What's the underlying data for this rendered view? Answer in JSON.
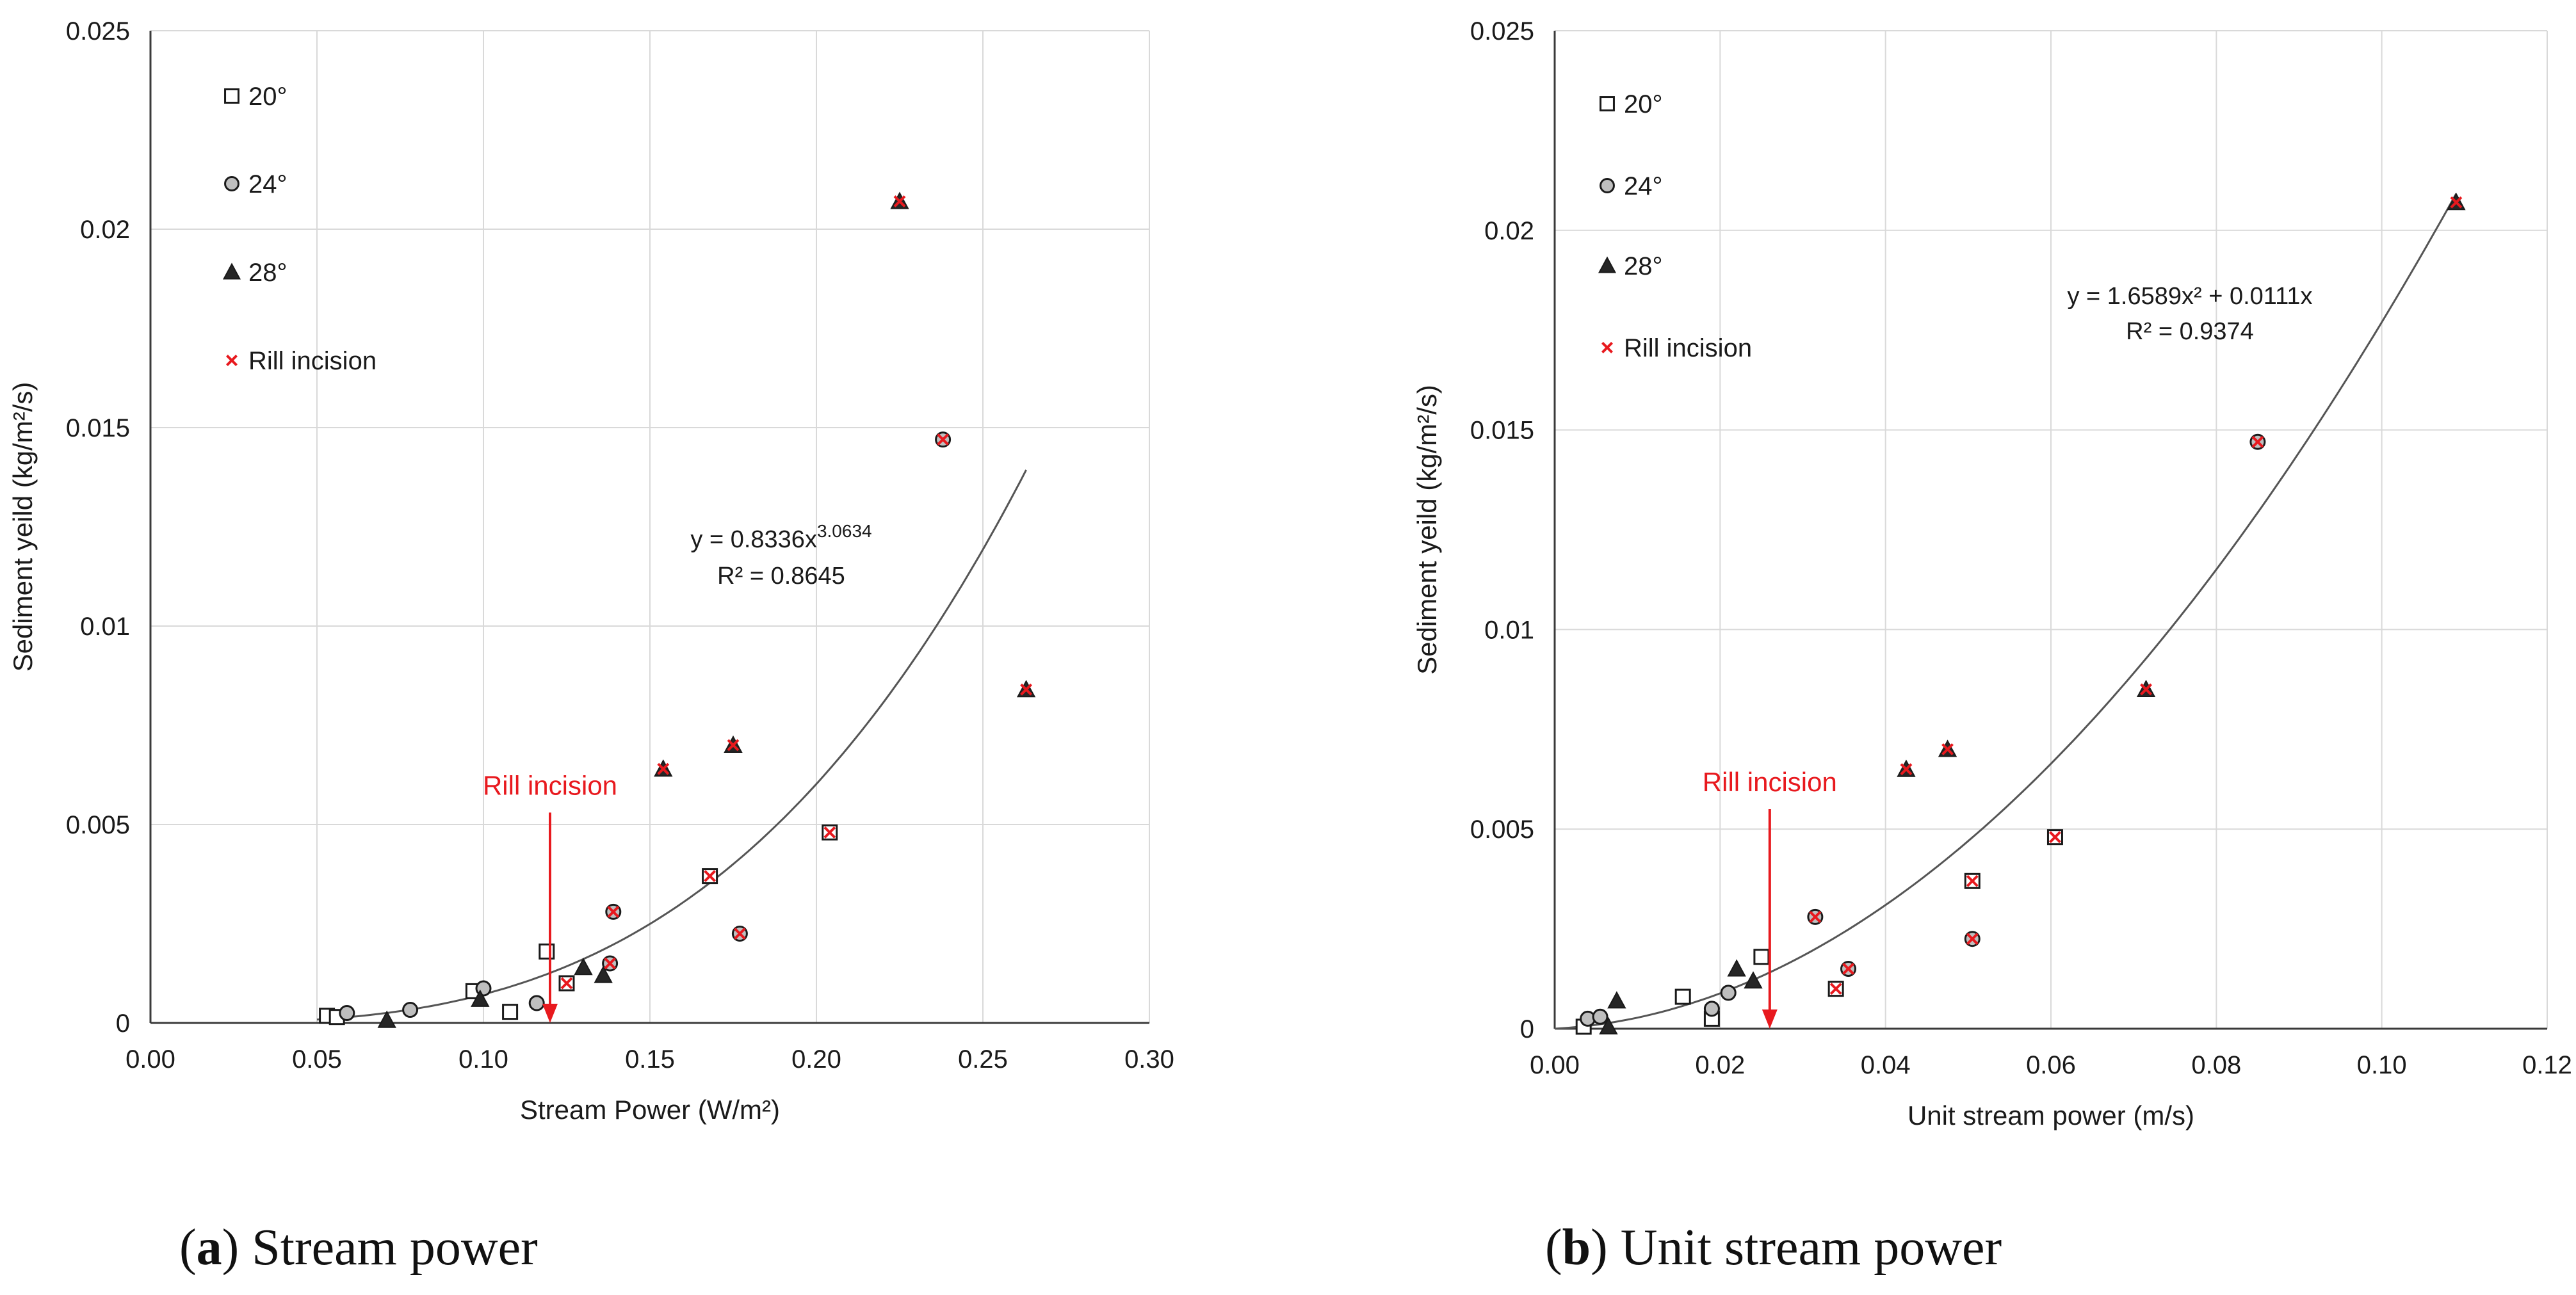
{
  "chart_data": [
    {
      "type": "scatter",
      "panel": "a",
      "caption": {
        "letter": "a",
        "text": " Stream power"
      },
      "xlabel": "Stream Power (W/m²)",
      "ylabel": "Sediment yeild (kg/m²/s)",
      "xlim": [
        0,
        0.3
      ],
      "ylim": [
        0,
        0.025
      ],
      "xticks": [
        "0.00",
        "0.05",
        "0.10",
        "0.15",
        "0.20",
        "0.25",
        "0.30"
      ],
      "yticks": [
        "0",
        "0.005",
        "0.01",
        "0.015",
        "0.02",
        "0.025"
      ],
      "grid": true,
      "legend": {
        "position": "top-left",
        "entries": [
          "20°",
          "24°",
          "28°",
          "Rill incision"
        ]
      },
      "series": [
        {
          "name": "20°",
          "marker": "square",
          "points": [
            [
              0.053,
              0.00018
            ],
            [
              0.056,
              0.00015
            ],
            [
              0.097,
              0.0008
            ],
            [
              0.108,
              0.00028
            ],
            [
              0.119,
              0.0018
            ],
            [
              0.125,
              0.001
            ],
            [
              0.168,
              0.0037
            ],
            [
              0.204,
              0.0048
            ]
          ]
        },
        {
          "name": "24°",
          "marker": "circle",
          "points": [
            [
              0.059,
              0.00025
            ],
            [
              0.078,
              0.00033
            ],
            [
              0.1,
              0.00087
            ],
            [
              0.116,
              0.0005
            ],
            [
              0.138,
              0.0015
            ],
            [
              0.139,
              0.0028
            ],
            [
              0.177,
              0.00225
            ],
            [
              0.238,
              0.0147
            ]
          ]
        },
        {
          "name": "28°",
          "marker": "triangle",
          "points": [
            [
              0.071,
              7e-05
            ],
            [
              0.099,
              0.0006
            ],
            [
              0.13,
              0.0014
            ],
            [
              0.136,
              0.0012
            ],
            [
              0.154,
              0.0064
            ],
            [
              0.175,
              0.007
            ],
            [
              0.225,
              0.0207
            ],
            [
              0.263,
              0.0084
            ]
          ]
        }
      ],
      "rill_incision": {
        "name": "Rill incision",
        "points": [
          [
            0.125,
            0.001
          ],
          [
            0.138,
            0.0015
          ],
          [
            0.139,
            0.0028
          ],
          [
            0.154,
            0.0064
          ],
          [
            0.168,
            0.0037
          ],
          [
            0.175,
            0.007
          ],
          [
            0.177,
            0.00225
          ],
          [
            0.204,
            0.0048
          ],
          [
            0.225,
            0.0207
          ],
          [
            0.238,
            0.0147
          ],
          [
            0.263,
            0.0084
          ]
        ]
      },
      "fit": {
        "kind": "power",
        "a": 0.8336,
        "b": 3.0634,
        "x_range": [
          0.05,
          0.263
        ],
        "equation_base": "y = 0.8336x",
        "equation_exp": "3.0634",
        "r2": "R² = 0.8645"
      },
      "annotation": {
        "text": "Rill incision",
        "x": 0.12,
        "y_from": 0.0053,
        "y_to": 0.0
      }
    },
    {
      "type": "scatter",
      "panel": "b",
      "caption": {
        "letter": "b",
        "text": " Unit stream power"
      },
      "xlabel": "Unit stream power (m/s)",
      "ylabel": "Sediment yeild (kg/m²/s)",
      "xlim": [
        0,
        0.12
      ],
      "ylim": [
        0,
        0.025
      ],
      "xticks": [
        "0.00",
        "0.02",
        "0.04",
        "0.06",
        "0.08",
        "0.10",
        "0.12"
      ],
      "yticks": [
        "0",
        "0.005",
        "0.01",
        "0.015",
        "0.02",
        "0.025"
      ],
      "grid": true,
      "legend": {
        "position": "top-left",
        "entries": [
          "20°",
          "24°",
          "28°",
          "Rill incision"
        ]
      },
      "series": [
        {
          "name": "20°",
          "marker": "square",
          "points": [
            [
              0.0035,
              5e-05
            ],
            [
              0.0155,
              0.0008
            ],
            [
              0.019,
              0.00025
            ],
            [
              0.025,
              0.0018
            ],
            [
              0.034,
              0.001
            ],
            [
              0.0505,
              0.0037
            ],
            [
              0.0605,
              0.0048
            ]
          ]
        },
        {
          "name": "24°",
          "marker": "circle",
          "points": [
            [
              0.004,
              0.00025
            ],
            [
              0.0055,
              0.0003
            ],
            [
              0.019,
              0.0005
            ],
            [
              0.021,
              0.0009
            ],
            [
              0.0315,
              0.0028
            ],
            [
              0.0355,
              0.0015
            ],
            [
              0.0505,
              0.00225
            ],
            [
              0.085,
              0.0147
            ]
          ]
        },
        {
          "name": "28°",
          "marker": "triangle",
          "points": [
            [
              0.0065,
              5e-05
            ],
            [
              0.0075,
              0.0007
            ],
            [
              0.022,
              0.0015
            ],
            [
              0.024,
              0.0012
            ],
            [
              0.0425,
              0.0065
            ],
            [
              0.0475,
              0.007
            ],
            [
              0.0715,
              0.0085
            ],
            [
              0.109,
              0.0207
            ]
          ]
        }
      ],
      "rill_incision": {
        "name": "Rill incision",
        "points": [
          [
            0.0315,
            0.0028
          ],
          [
            0.034,
            0.001
          ],
          [
            0.0355,
            0.0015
          ],
          [
            0.0425,
            0.0065
          ],
          [
            0.0475,
            0.007
          ],
          [
            0.0505,
            0.0037
          ],
          [
            0.0505,
            0.00225
          ],
          [
            0.0605,
            0.0048
          ],
          [
            0.0715,
            0.0085
          ],
          [
            0.085,
            0.0147
          ],
          [
            0.109,
            0.0207
          ]
        ]
      },
      "fit": {
        "kind": "poly2",
        "a": 1.6589,
        "b": 0.0111,
        "x_range": [
          0.0,
          0.109
        ],
        "equation_base": "y = 1.6589x² + 0.0111x",
        "equation_exp": "",
        "r2": "R² = 0.9374"
      },
      "annotation": {
        "text": "Rill incision",
        "x": 0.026,
        "y_from": 0.0055,
        "y_to": 0.0
      }
    }
  ],
  "colors": {
    "axis": "#3a3a3a",
    "grid": "#d9d9d9",
    "fit": "#555555",
    "rill": "#e8191e",
    "circle_fill": "#bfbfbf",
    "triangle_fill": "#262626",
    "square_fill": "#ffffff",
    "text": "#1a1a1a"
  }
}
